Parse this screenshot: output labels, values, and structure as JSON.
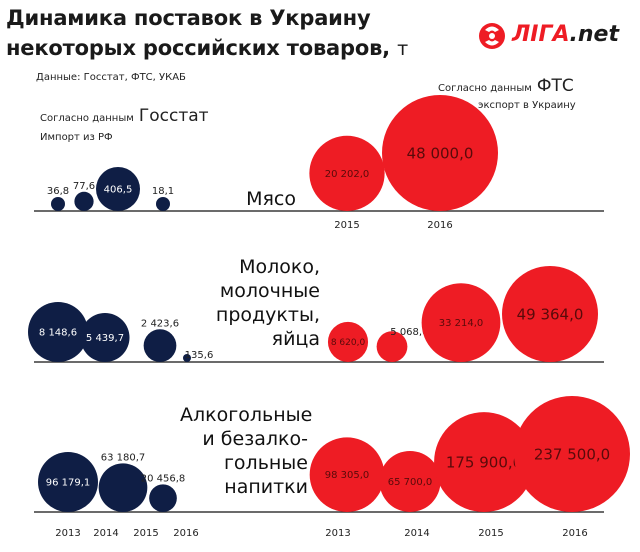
{
  "header": {
    "title_line1": "Динамика поставок в Украину",
    "title_line2": "некоторых российских товаров,",
    "title_unit": "т",
    "data_source": "Данные: Госстат, ФТС, УКАБ"
  },
  "logo": {
    "text_part1": "ЛIГА",
    "text_part2": ".net"
  },
  "sources": {
    "gosstat": {
      "small": "Согласно данным",
      "big": "Госстат",
      "sub": "Импорт из РФ"
    },
    "fts": {
      "small": "Согласно данным",
      "big": "ФТС",
      "sub": "экспорт в Украину"
    }
  },
  "colors": {
    "gosstat": "#0f1e45",
    "fts": "#ee1c24",
    "axis": "#3a3a3a"
  },
  "chart_data": [
    {
      "type": "bubble",
      "category": "Мясо",
      "series": [
        {
          "name": "Госстат",
          "x": [
            "2013",
            "2014",
            "2015",
            "2016"
          ],
          "values": [
            36.8,
            77.6,
            406.5,
            18.1
          ],
          "labels": [
            "36,8",
            "77,6",
            "406,5",
            "18,1"
          ]
        },
        {
          "name": "ФТС",
          "x": [
            "2015",
            "2016"
          ],
          "values": [
            20202.0,
            48000.0
          ],
          "labels": [
            "20 202,0",
            "48 000,0"
          ]
        }
      ],
      "x_tick_labels": [
        "2015",
        "2016"
      ]
    },
    {
      "type": "bubble",
      "category_lines": [
        "Молоко,",
        "молочные",
        "продукты,",
        "яйца"
      ],
      "series": [
        {
          "name": "Госстат",
          "x": [
            "2013",
            "2014",
            "2015",
            "2016"
          ],
          "values": [
            8148.6,
            5439.7,
            2423.6,
            135.6
          ],
          "labels": [
            "8 148,6",
            "5 439,7",
            "2 423,6",
            "135,6"
          ]
        },
        {
          "name": "ФТС",
          "x": [
            "2013",
            "2014",
            "2015",
            "2016"
          ],
          "values": [
            8620.0,
            5068.0,
            33214.0,
            49364.0
          ],
          "labels": [
            "8 620,0",
            "5 068,0",
            "33 214,0",
            "49 364,0"
          ]
        }
      ]
    },
    {
      "type": "bubble",
      "category_lines": [
        "Алкогольные",
        "и безалко-",
        "гольные",
        "напитки"
      ],
      "series": [
        {
          "name": "Госстат",
          "x": [
            "2013",
            "2014",
            "2015",
            "2016"
          ],
          "values": [
            96179.1,
            63180.7,
            20456.8,
            null
          ],
          "labels": [
            "96 179,1",
            "63 180,7",
            "20 456,8",
            ""
          ]
        },
        {
          "name": "ФТС",
          "x": [
            "2013",
            "2014",
            "2015",
            "2016"
          ],
          "values": [
            98305.0,
            65700.0,
            175900.0,
            237500.0
          ],
          "labels": [
            "98 305,0",
            "65 700,0",
            "175 900,0",
            "237 500,0"
          ]
        }
      ],
      "x_tick_labels_left": [
        "2013",
        "2014",
        "2015",
        "2016"
      ],
      "x_tick_labels_right": [
        "2013",
        "2014",
        "2015",
        "2016"
      ]
    }
  ]
}
